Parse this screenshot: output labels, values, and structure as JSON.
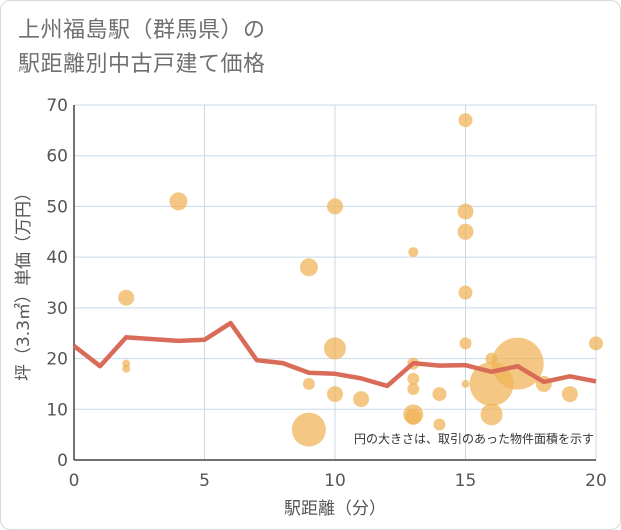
{
  "title_line1": "上州福島駅（群馬県）の",
  "title_line2": "駅距離別中古戸建て価格",
  "chart_data": {
    "type": "scatter",
    "xlabel": "駅距離（分）",
    "ylabel": "坪（3.3㎡）単価（万円）",
    "xlim": [
      0,
      20
    ],
    "ylim": [
      0,
      70
    ],
    "xticks": [
      0,
      5,
      10,
      15,
      20
    ],
    "yticks": [
      0,
      10,
      20,
      30,
      40,
      50,
      60,
      70
    ],
    "grid": true,
    "note": "円の大きさは、取引のあった物件面積を示す",
    "colors": {
      "points": "#f0b354",
      "line": "#d96c58",
      "grid": "#c9d8e8"
    },
    "points": [
      {
        "x": 2,
        "y": 32,
        "size": 8
      },
      {
        "x": 2,
        "y": 19,
        "size": 4
      },
      {
        "x": 2,
        "y": 18,
        "size": 4
      },
      {
        "x": 4,
        "y": 51,
        "size": 9
      },
      {
        "x": 9,
        "y": 38,
        "size": 9
      },
      {
        "x": 9,
        "y": 15,
        "size": 6
      },
      {
        "x": 9,
        "y": 6,
        "size": 17
      },
      {
        "x": 10,
        "y": 50,
        "size": 8
      },
      {
        "x": 10,
        "y": 22,
        "size": 11
      },
      {
        "x": 10,
        "y": 13,
        "size": 8
      },
      {
        "x": 11,
        "y": 12,
        "size": 8
      },
      {
        "x": 13,
        "y": 41,
        "size": 5
      },
      {
        "x": 13,
        "y": 19,
        "size": 6
      },
      {
        "x": 13,
        "y": 16,
        "size": 6
      },
      {
        "x": 13,
        "y": 14,
        "size": 6
      },
      {
        "x": 13,
        "y": 9,
        "size": 10
      },
      {
        "x": 13,
        "y": 8.5,
        "size": 8
      },
      {
        "x": 14,
        "y": 13,
        "size": 7
      },
      {
        "x": 14,
        "y": 7,
        "size": 6
      },
      {
        "x": 15,
        "y": 67,
        "size": 7
      },
      {
        "x": 15,
        "y": 49,
        "size": 8
      },
      {
        "x": 15,
        "y": 45,
        "size": 8
      },
      {
        "x": 15,
        "y": 33,
        "size": 7
      },
      {
        "x": 15,
        "y": 23,
        "size": 6
      },
      {
        "x": 15,
        "y": 15,
        "size": 4
      },
      {
        "x": 16,
        "y": 20,
        "size": 6
      },
      {
        "x": 16,
        "y": 15,
        "size": 22
      },
      {
        "x": 16,
        "y": 9,
        "size": 11
      },
      {
        "x": 17,
        "y": 19,
        "size": 26
      },
      {
        "x": 18,
        "y": 15,
        "size": 8
      },
      {
        "x": 19,
        "y": 13,
        "size": 8
      },
      {
        "x": 20,
        "y": 23,
        "size": 7
      }
    ],
    "line": {
      "x": [
        0,
        1,
        2,
        4,
        5,
        6,
        7,
        8,
        9,
        10,
        11,
        12,
        13,
        14,
        15,
        16,
        17,
        18,
        19,
        20
      ],
      "y": [
        22.5,
        18.5,
        24.2,
        23.5,
        23.7,
        27,
        19.7,
        19.1,
        17.2,
        17,
        16.1,
        14.6,
        19.1,
        18.6,
        18.7,
        17.4,
        18.5,
        15.4,
        16.5,
        15.5
      ]
    }
  }
}
